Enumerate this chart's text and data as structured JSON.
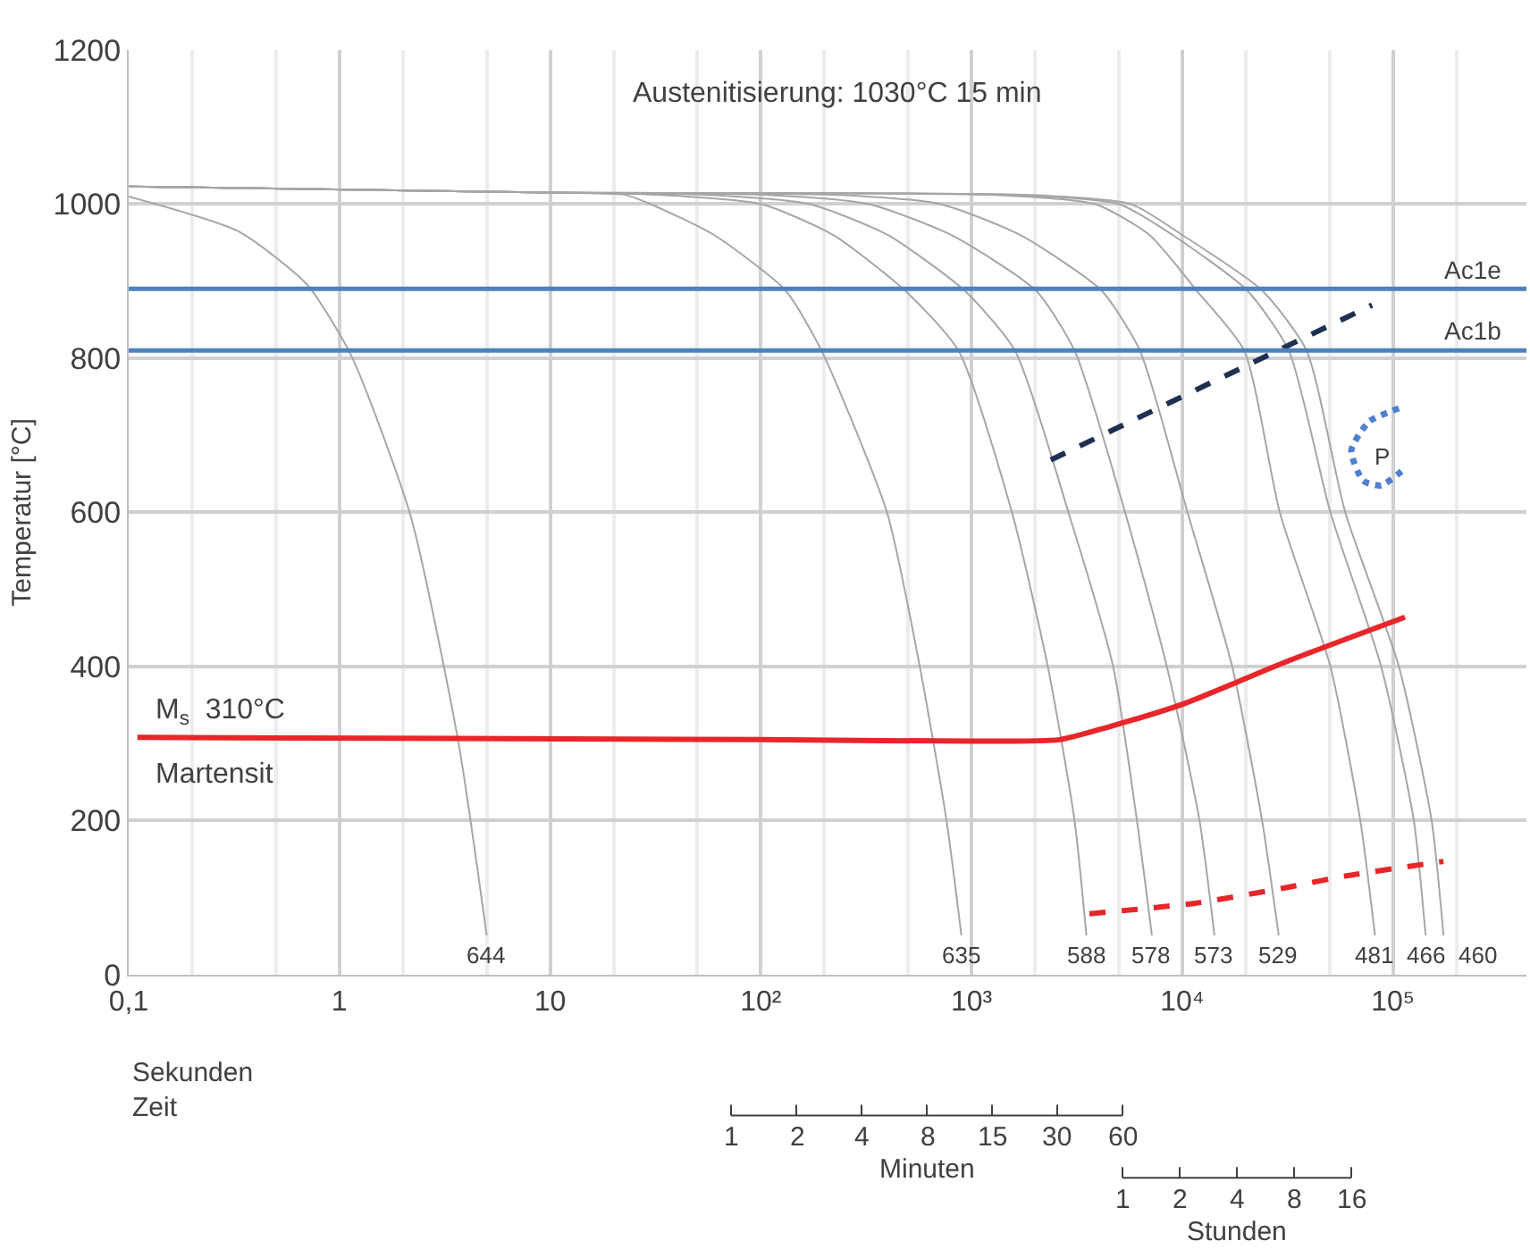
{
  "chart_data": {
    "type": "line",
    "xlabel": "Sekunden\nZeit",
    "ylabel": "Temperatur [°C]",
    "log": "x",
    "xlim": [
      0.1,
      430000
    ],
    "xticks": [
      {
        "value": 0.1,
        "label": "0,1"
      },
      1,
      10,
      {
        "value": 100,
        "label": "10²"
      },
      {
        "value": 1000,
        "label": "10³"
      },
      {
        "value": 10000,
        "label": "10⁴"
      },
      {
        "value": 100000,
        "label": "10⁵"
      }
    ],
    "ylim": [
      0,
      1200
    ],
    "yticks": [
      0,
      200,
      400,
      600,
      800,
      1000,
      1200
    ],
    "grid": true,
    "legend": false,
    "series": [
      {
        "name": "644",
        "color": "#a6a6a6",
        "x": [
          0.1,
          0.33,
          0.7,
          1.14,
          2.18,
          3.67,
          5.0
        ],
        "values": [
          1010,
          965,
          896,
          803,
          595,
          302,
          51
        ]
      },
      {
        "name": "635",
        "color": "#a6a6a6",
        "x": [
          0.1,
          10,
          22.7,
          30,
          60,
          131,
          194,
          397,
          568,
          761,
          895
        ],
        "values": [
          1023,
          1015,
          1012,
          1000,
          960,
          888,
          810,
          600,
          400,
          200,
          51
        ]
      },
      {
        "name": "588",
        "color": "#a6a6a6",
        "x": [
          0.1,
          10,
          34,
          101,
          220,
          483,
          867,
          1556,
          2301,
          3083,
          3508
        ],
        "values": [
          1023,
          1015,
          1012,
          1000,
          960,
          888,
          810,
          600,
          400,
          200,
          51
        ]
      },
      {
        "name": "578",
        "color": "#a6a6a6",
        "x": [
          0.1,
          10,
          57,
          171,
          400,
          925,
          1607,
          2884,
          4699,
          6095,
          7178
        ],
        "values": [
          1023,
          1015,
          1012,
          1000,
          960,
          888,
          810,
          600,
          400,
          200,
          51
        ]
      },
      {
        "name": "573",
        "color": "#a6a6a6",
        "x": [
          0.1,
          10,
          109,
          327,
          800,
          2018,
          3083,
          5357,
          8453,
          12080,
          14220
        ],
        "values": [
          1023,
          1015,
          1012,
          1000,
          960,
          888,
          810,
          600,
          400,
          200,
          51
        ]
      },
      {
        "name": "529",
        "color": "#a6a6a6",
        "x": [
          0.1,
          10,
          238,
          713,
          1700,
          4130,
          6295,
          10590,
          17260,
          23930,
          28700
        ],
        "values": [
          1023,
          1015,
          1012,
          1000,
          960,
          888,
          810,
          600,
          400,
          200,
          51
        ]
      },
      {
        "name": "481",
        "color": "#a6a6a6",
        "x": [
          0.1,
          10,
          1290,
          3870,
          7000,
          11690,
          19680,
          29040,
          50470,
          69980,
          82220
        ],
        "values": [
          1023,
          1015,
          1012,
          1000,
          960,
          888,
          810,
          600,
          400,
          200,
          51
        ]
      },
      {
        "name": "466",
        "color": "#a6a6a6",
        "x": [
          0.1,
          10,
          1670,
          5023,
          9000,
          20320,
          32060,
          50470,
          87900,
          125600,
          142900
        ],
        "values": [
          1023,
          1015,
          1012,
          1000,
          960,
          888,
          810,
          600,
          400,
          200,
          51
        ]
      },
      {
        "name": "460",
        "color": "#a6a6a6",
        "x": [
          0.1,
          10,
          1900,
          5715,
          10000,
          23930,
          38900,
          59400,
          106700,
          152600,
          173800
        ],
        "values": [
          1023,
          1015,
          1012,
          1000,
          960,
          888,
          810,
          600,
          400,
          200,
          51
        ]
      },
      {
        "color": "#e8262a",
        "line_style": "solid",
        "x": [
          0.11,
          100,
          1000,
          2619,
          4406,
          10260,
          31030,
          114000
        ],
        "values": [
          308,
          305,
          303,
          305,
          321,
          352,
          406,
          464
        ]
      },
      {
        "color": "#e8262a",
        "line_style": "dashed",
        "x": [
          3625,
          11690,
          31030,
          59400,
          173800
        ],
        "values": [
          79,
          93,
          113,
          128,
          147
        ]
      },
      {
        "color": "#1f3050",
        "line_style": "dashed",
        "x": [
          2377,
          79600
        ],
        "values": [
          668,
          869
        ]
      },
      {
        "color": "#4f7fd0",
        "line_style": "dotted",
        "x": [
          106700,
          77100,
          63400,
          72200,
          87900,
          114000
        ],
        "values": [
          735,
          718,
          680,
          641,
          635,
          657
        ]
      }
    ],
    "ref_lines": [
      {
        "axis": "y",
        "value": 890,
        "label": "Ac1e",
        "color": "#4f81bd"
      },
      {
        "axis": "y",
        "value": 810,
        "label": "Ac1b",
        "color": "#4f81bd"
      }
    ],
    "annotations": [
      "Austenitisierung: 1030°C 15 min",
      "M$_{s}$  310°C",
      "Martensit",
      "P",
      "Minuten",
      "1",
      "2",
      "4",
      "8",
      "15",
      "30",
      "60",
      "Stunden",
      "1",
      "2",
      "4",
      "8",
      "16"
    ]
  }
}
